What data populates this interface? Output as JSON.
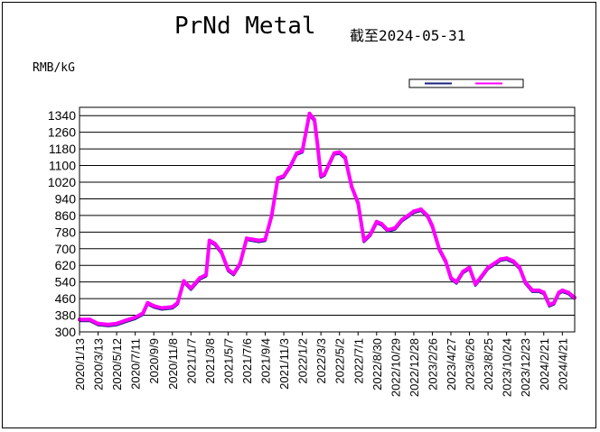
{
  "chart_data": {
    "type": "line",
    "title": "PrNd Metal",
    "subtitle": "截至2024-05-31",
    "ylabel": "RMB/kG",
    "xlabel": "",
    "ylim": [
      300,
      1380
    ],
    "yticks": [
      300,
      380,
      460,
      540,
      620,
      700,
      780,
      860,
      940,
      1020,
      1100,
      1180,
      1260,
      1340
    ],
    "xticks": [
      "2020/1/13",
      "2020/3/13",
      "2020/5/12",
      "2020/7/11",
      "2020/9/9",
      "2020/11/8",
      "2021/1/7",
      "2021/3/8",
      "2021/5/7",
      "2021/7/6",
      "2021/9/4",
      "2021/11/3",
      "2022/1/2",
      "2022/3/3",
      "2022/5/2",
      "2022/7/1",
      "2022/8/30",
      "2022/10/29",
      "2022/12/28",
      "2023/2/26",
      "2023/4/27",
      "2023/6/26",
      "2023/8/25",
      "2023/10/24",
      "2023/12/23",
      "2024/2/21",
      "2024/4/21"
    ],
    "grid": true,
    "legend": {
      "position": "top-right",
      "entries": [
        "",
        ""
      ]
    },
    "colors": {
      "series_low": "#1a237e",
      "series_high": "#ff00ff",
      "background": "#ffffff",
      "axis": "#000000"
    },
    "series": [
      {
        "color": "#ff00ff",
        "x": [
          "2020/1/13",
          "2020/2/15",
          "2020/3/13",
          "2020/4/15",
          "2020/5/12",
          "2020/6/10",
          "2020/7/11",
          "2020/8/5",
          "2020/8/20",
          "2020/9/9",
          "2020/10/5",
          "2020/11/8",
          "2020/11/25",
          "2020/12/15",
          "2021/1/7",
          "2021/2/5",
          "2021/2/25",
          "2021/3/8",
          "2021/3/25",
          "2021/4/15",
          "2021/5/7",
          "2021/5/25",
          "2021/6/15",
          "2021/7/6",
          "2021/7/25",
          "2021/8/15",
          "2021/9/4",
          "2021/9/25",
          "2021/10/15",
          "2021/11/3",
          "2021/11/25",
          "2021/12/15",
          "2022/1/2",
          "2022/1/25",
          "2022/2/10",
          "2022/2/20",
          "2022/3/3",
          "2022/3/15",
          "2022/3/30",
          "2022/4/15",
          "2022/5/2",
          "2022/5/20",
          "2022/6/10",
          "2022/7/1",
          "2022/7/20",
          "2022/8/10",
          "2022/8/30",
          "2022/9/15",
          "2022/10/5",
          "2022/10/29",
          "2022/11/20",
          "2022/12/10",
          "2022/12/28",
          "2023/1/20",
          "2023/2/10",
          "2023/2/26",
          "2023/3/20",
          "2023/4/10",
          "2023/4/27",
          "2023/5/15",
          "2023/6/5",
          "2023/6/26",
          "2023/7/15",
          "2023/8/5",
          "2023/8/25",
          "2023/9/15",
          "2023/10/5",
          "2023/10/24",
          "2023/11/15",
          "2023/12/5",
          "2023/12/23",
          "2024/1/15",
          "2024/2/5",
          "2024/2/21",
          "2024/3/10",
          "2024/3/25",
          "2024/4/10",
          "2024/4/21",
          "2024/5/10",
          "2024/5/31"
        ],
        "y": [
          360,
          360,
          340,
          335,
          340,
          355,
          370,
          390,
          440,
          425,
          415,
          420,
          440,
          545,
          510,
          560,
          575,
          740,
          725,
          685,
          600,
          580,
          630,
          750,
          745,
          740,
          745,
          860,
          1040,
          1050,
          1100,
          1160,
          1170,
          1350,
          1320,
          1200,
          1050,
          1060,
          1110,
          1160,
          1165,
          1140,
          1000,
          920,
          740,
          770,
          830,
          820,
          790,
          800,
          840,
          860,
          880,
          890,
          860,
          810,
          700,
          640,
          560,
          540,
          590,
          610,
          530,
          570,
          610,
          630,
          650,
          655,
          640,
          610,
          540,
          500,
          500,
          490,
          430,
          440,
          490,
          500,
          490,
          465
        ]
      }
    ]
  }
}
